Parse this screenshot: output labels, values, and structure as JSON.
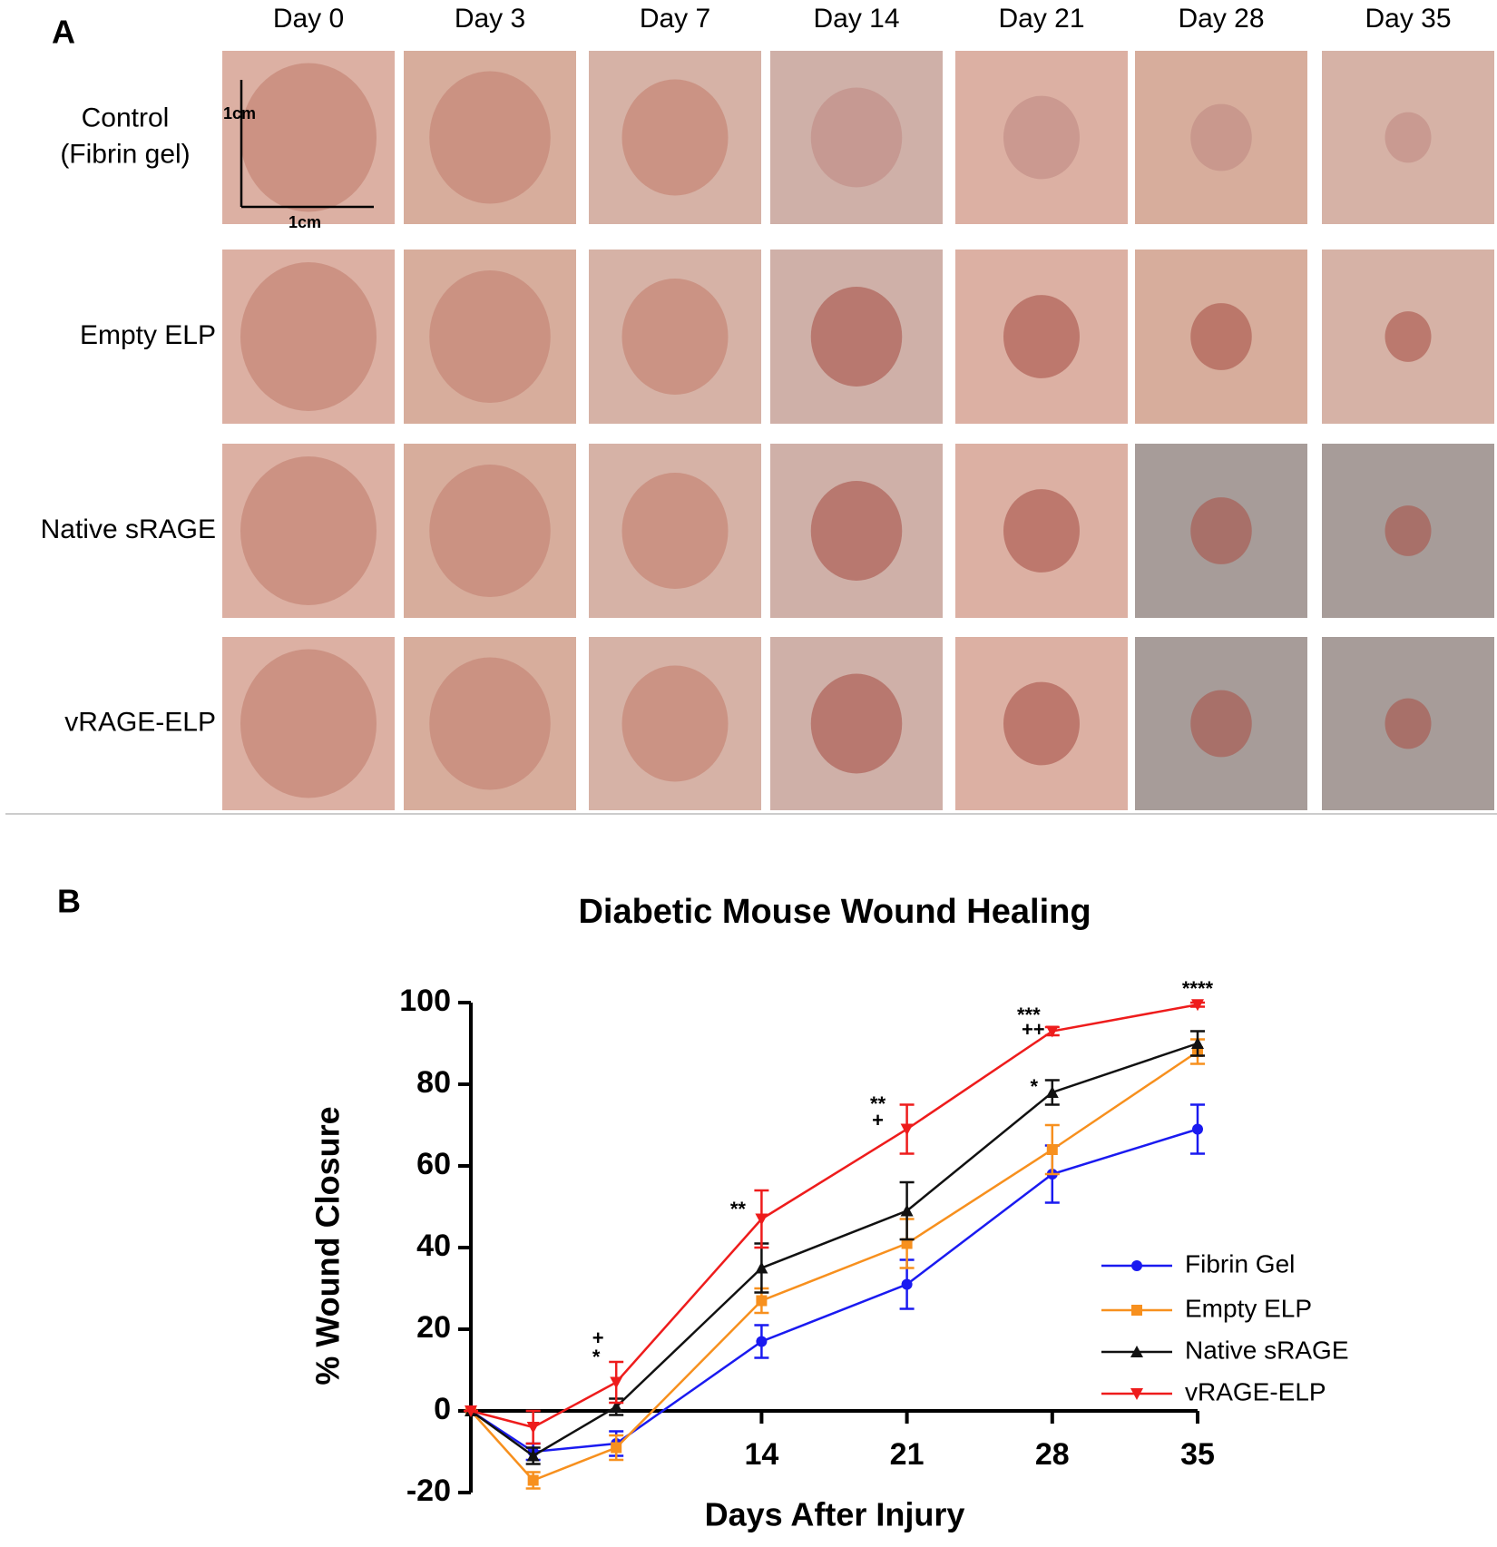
{
  "panel_a": {
    "label": "A",
    "days": [
      "Day 0",
      "Day 3",
      "Day 7",
      "Day 14",
      "Day 21",
      "Day 28",
      "Day 35"
    ],
    "rows": [
      "Control\n(Fibrin gel)",
      "Empty ELP",
      "Native sRAGE",
      "vRAGE-ELP"
    ],
    "scale_labels": [
      "1cm",
      "1cm"
    ]
  },
  "chart_data": {
    "type": "line",
    "panel_label": "B",
    "title": "Diabetic Mouse Wound Healing",
    "x_label": "Days After Injury",
    "y_label": "% Wound Closure",
    "x": [
      0,
      3,
      7,
      14,
      21,
      28,
      35
    ],
    "xlim": [
      0,
      35
    ],
    "xticks": [
      14,
      21,
      28,
      35
    ],
    "ylim": [
      -20,
      100
    ],
    "yticks": [
      -20,
      0,
      20,
      40,
      60,
      80,
      100
    ],
    "legend": "lower right",
    "series": [
      {
        "name": "Fibrin Gel",
        "color": "#1a1af0",
        "marker": "circle",
        "values": [
          0,
          -10,
          -8,
          17,
          31,
          58,
          69
        ],
        "errors": [
          0,
          2,
          3,
          4,
          6,
          7,
          6
        ]
      },
      {
        "name": "Empty ELP",
        "color": "#f7901e",
        "marker": "square",
        "values": [
          0,
          -17,
          -9,
          27,
          41,
          64,
          88
        ],
        "errors": [
          0,
          2,
          3,
          3,
          6,
          6,
          3
        ]
      },
      {
        "name": "Native sRAGE",
        "color": "#111111",
        "marker": "triangle-up",
        "values": [
          0,
          -11,
          1,
          35,
          49,
          78,
          90
        ],
        "errors": [
          0,
          2,
          2,
          6,
          7,
          3,
          3
        ]
      },
      {
        "name": "vRAGE-ELP",
        "color": "#ee1c1c",
        "marker": "triangle-down",
        "values": [
          0,
          -4,
          7,
          47,
          69,
          93,
          99.5
        ],
        "errors": [
          0,
          4,
          5,
          7,
          6,
          1,
          0.5
        ]
      }
    ],
    "annotations": [
      {
        "x": 7,
        "text": "+"
      },
      {
        "x": 7,
        "text": "*"
      },
      {
        "x": 14,
        "text": "**"
      },
      {
        "x": 21,
        "text": "**"
      },
      {
        "x": 21,
        "text": "+"
      },
      {
        "x": 28,
        "text": "***"
      },
      {
        "x": 28,
        "text": "++"
      },
      {
        "x": 28,
        "text": "*"
      },
      {
        "x": 35,
        "text": "****"
      }
    ]
  }
}
